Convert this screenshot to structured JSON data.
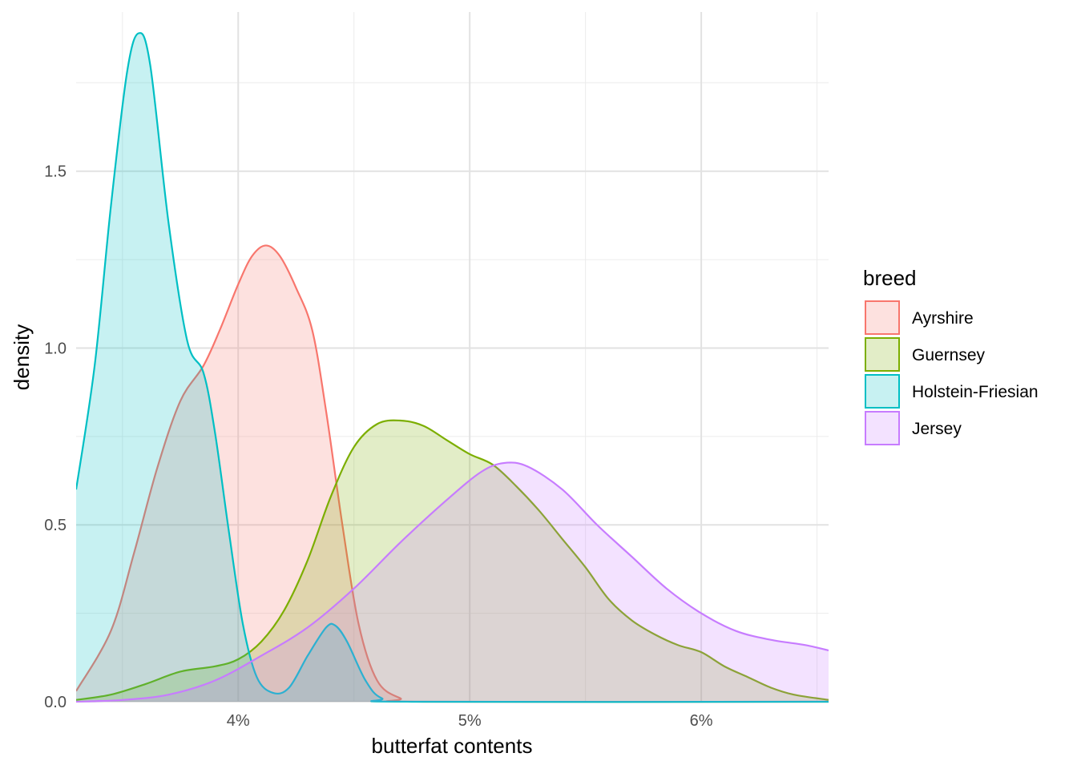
{
  "chart_data": {
    "type": "area",
    "subtype": "density",
    "title": "",
    "xlabel": "butterfat contents",
    "ylabel": "density",
    "xlim": [
      3.3,
      6.55
    ],
    "ylim": [
      0,
      1.95
    ],
    "x_ticks": [
      {
        "value": 4,
        "label": "4%"
      },
      {
        "value": 5,
        "label": "5%"
      },
      {
        "value": 6,
        "label": "6%"
      }
    ],
    "x_minor_ticks": [
      3.5,
      4.5,
      5.5,
      6.5
    ],
    "y_ticks": [
      {
        "value": 0,
        "label": "0.0"
      },
      {
        "value": 0.5,
        "label": "0.5"
      },
      {
        "value": 1.0,
        "label": "1.0"
      },
      {
        "value": 1.5,
        "label": "1.5"
      }
    ],
    "y_minor_ticks": [
      0.25,
      0.75,
      1.25,
      1.75
    ],
    "grid": true,
    "legend": {
      "title": "breed",
      "position": "right"
    },
    "fill_opacity": 0.22,
    "series": [
      {
        "name": "Ayrshire",
        "color": "#F8766D",
        "points": [
          [
            3.3,
            0.03
          ],
          [
            3.45,
            0.2
          ],
          [
            3.55,
            0.42
          ],
          [
            3.65,
            0.66
          ],
          [
            3.75,
            0.85
          ],
          [
            3.85,
            0.95
          ],
          [
            3.92,
            1.05
          ],
          [
            4.0,
            1.18
          ],
          [
            4.06,
            1.26
          ],
          [
            4.12,
            1.29
          ],
          [
            4.18,
            1.26
          ],
          [
            4.25,
            1.17
          ],
          [
            4.32,
            1.05
          ],
          [
            4.38,
            0.82
          ],
          [
            4.45,
            0.5
          ],
          [
            4.52,
            0.22
          ],
          [
            4.6,
            0.06
          ],
          [
            4.7,
            0.01
          ],
          [
            4.8,
            0.0
          ],
          [
            6.55,
            0.0
          ]
        ]
      },
      {
        "name": "Guernsey",
        "color": "#7CAE00",
        "points": [
          [
            3.3,
            0.005
          ],
          [
            3.45,
            0.02
          ],
          [
            3.6,
            0.05
          ],
          [
            3.75,
            0.085
          ],
          [
            3.9,
            0.1
          ],
          [
            4.0,
            0.12
          ],
          [
            4.1,
            0.17
          ],
          [
            4.2,
            0.26
          ],
          [
            4.3,
            0.4
          ],
          [
            4.4,
            0.58
          ],
          [
            4.5,
            0.72
          ],
          [
            4.6,
            0.785
          ],
          [
            4.7,
            0.795
          ],
          [
            4.8,
            0.78
          ],
          [
            4.9,
            0.74
          ],
          [
            5.0,
            0.7
          ],
          [
            5.1,
            0.67
          ],
          [
            5.2,
            0.61
          ],
          [
            5.3,
            0.54
          ],
          [
            5.4,
            0.46
          ],
          [
            5.5,
            0.38
          ],
          [
            5.6,
            0.29
          ],
          [
            5.7,
            0.23
          ],
          [
            5.8,
            0.19
          ],
          [
            5.9,
            0.16
          ],
          [
            6.0,
            0.14
          ],
          [
            6.1,
            0.1
          ],
          [
            6.2,
            0.07
          ],
          [
            6.3,
            0.04
          ],
          [
            6.4,
            0.02
          ],
          [
            6.55,
            0.005
          ]
        ]
      },
      {
        "name": "Holstein-Friesian",
        "color": "#00BFC4",
        "points": [
          [
            3.3,
            0.6
          ],
          [
            3.38,
            0.95
          ],
          [
            3.45,
            1.4
          ],
          [
            3.52,
            1.78
          ],
          [
            3.57,
            1.89
          ],
          [
            3.62,
            1.8
          ],
          [
            3.7,
            1.35
          ],
          [
            3.78,
            1.02
          ],
          [
            3.85,
            0.93
          ],
          [
            3.9,
            0.76
          ],
          [
            3.96,
            0.48
          ],
          [
            4.02,
            0.22
          ],
          [
            4.08,
            0.07
          ],
          [
            4.15,
            0.025
          ],
          [
            4.22,
            0.04
          ],
          [
            4.3,
            0.13
          ],
          [
            4.38,
            0.21
          ],
          [
            4.42,
            0.215
          ],
          [
            4.47,
            0.17
          ],
          [
            4.55,
            0.06
          ],
          [
            4.62,
            0.01
          ],
          [
            4.75,
            0.0
          ],
          [
            6.55,
            0.0
          ]
        ]
      },
      {
        "name": "Jersey",
        "color": "#C77CFF",
        "points": [
          [
            3.3,
            0.0
          ],
          [
            3.5,
            0.005
          ],
          [
            3.7,
            0.02
          ],
          [
            3.9,
            0.06
          ],
          [
            4.1,
            0.13
          ],
          [
            4.3,
            0.21
          ],
          [
            4.5,
            0.32
          ],
          [
            4.7,
            0.45
          ],
          [
            4.9,
            0.57
          ],
          [
            5.05,
            0.65
          ],
          [
            5.15,
            0.675
          ],
          [
            5.25,
            0.665
          ],
          [
            5.4,
            0.6
          ],
          [
            5.55,
            0.5
          ],
          [
            5.7,
            0.41
          ],
          [
            5.85,
            0.32
          ],
          [
            6.0,
            0.25
          ],
          [
            6.15,
            0.2
          ],
          [
            6.3,
            0.175
          ],
          [
            6.45,
            0.16
          ],
          [
            6.55,
            0.145
          ]
        ]
      }
    ]
  }
}
